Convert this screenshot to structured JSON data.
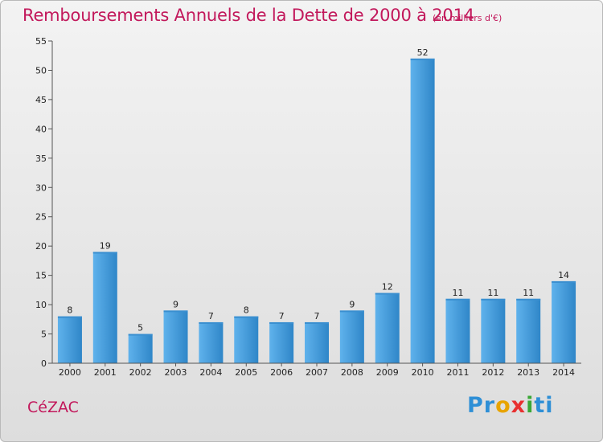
{
  "header": {
    "title": "Remboursements Annuels de la Dette de 2000 à 2014",
    "subtitle": "(en milliers d'€)"
  },
  "footer": {
    "commune": "CéZAC",
    "brand": [
      "Pr",
      "o",
      "x",
      "i",
      "ti"
    ]
  },
  "colors": {
    "accent": "#c2185b",
    "bar_light": "#5aaeea",
    "bar_dark": "#2a7fc0",
    "axis": "#555555"
  },
  "chart_data": {
    "type": "bar",
    "title": "Remboursements Annuels de la Dette de 2000 à 2014",
    "subtitle": "(en milliers d'€)",
    "xlabel": "",
    "ylabel": "",
    "categories": [
      "2000",
      "2001",
      "2002",
      "2003",
      "2004",
      "2005",
      "2006",
      "2007",
      "2008",
      "2009",
      "2010",
      "2011",
      "2012",
      "2013",
      "2014"
    ],
    "values": [
      8,
      19,
      5,
      9,
      7,
      8,
      7,
      7,
      9,
      12,
      52,
      11,
      11,
      11,
      14
    ],
    "ylim": [
      0,
      55
    ],
    "yticks": [
      0,
      5,
      10,
      15,
      20,
      25,
      30,
      35,
      40,
      45,
      50,
      55
    ],
    "grid": false,
    "legend": "none"
  }
}
